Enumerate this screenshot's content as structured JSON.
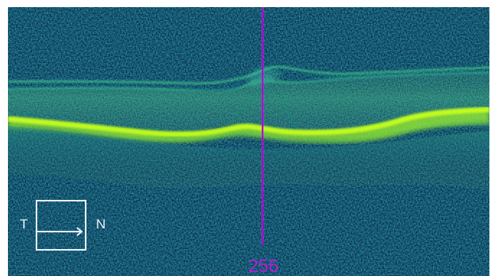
{
  "scan": {
    "background_color": "#071827",
    "speckle_colors": [
      "#0a3a5c",
      "#0e5c7b",
      "#1e8e82",
      "#3bb069",
      "#75d843",
      "#b7f21f"
    ],
    "layer_color": "#b2ff18",
    "cursor_color": "#b000d8"
  },
  "overlay": {
    "cursor_value": "256",
    "orientation": {
      "left": "T",
      "right": "N"
    }
  }
}
